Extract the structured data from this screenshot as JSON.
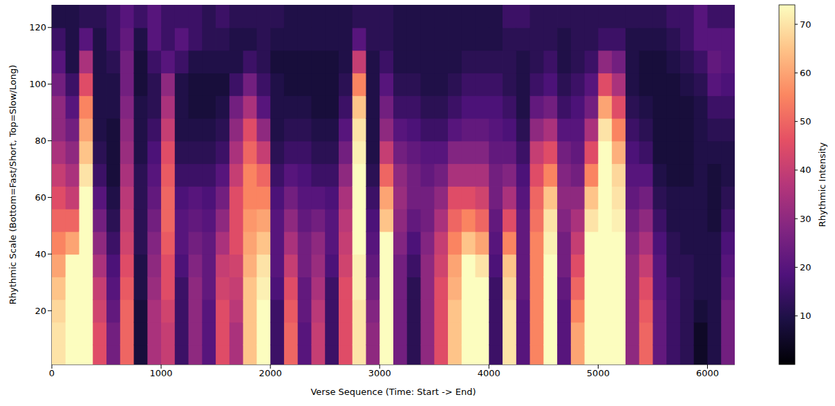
{
  "chart_data": {
    "type": "heatmap",
    "xlabel": "Verse Sequence (Time: Start -> End)",
    "ylabel": "Rhythmic Scale (Bottom=Fast/Short, Top=Slow/Long)",
    "color": "magma",
    "xlim": [
      0,
      6250
    ],
    "xticks": [
      0,
      1000,
      2000,
      3000,
      4000,
      5000,
      6000
    ],
    "ylim": [
      1,
      128
    ],
    "yticks": [
      20,
      40,
      60,
      80,
      100,
      120
    ],
    "grid": false,
    "x": [
      62.5,
      187.5,
      312.5,
      437.5,
      562.5,
      687.5,
      812.5,
      937.5,
      1062.5,
      1187.5,
      1312.5,
      1437.5,
      1562.5,
      1687.5,
      1812.5,
      1937.5,
      2062.5,
      2187.5,
      2312.5,
      2437.5,
      2562.5,
      2687.5,
      2812.5,
      2937.5,
      3062.5,
      3187.5,
      3312.5,
      3437.5,
      3562.5,
      3687.5,
      3812.5,
      3937.5,
      4062.5,
      4187.5,
      4312.5,
      4437.5,
      4562.5,
      4687.5,
      4812.5,
      4937.5,
      5062.5,
      5187.5,
      5312.5,
      5437.5,
      5562.5,
      5687.5,
      5812.5,
      5937.5,
      6062.5,
      6187.5
    ],
    "y": [
      4,
      12,
      20,
      28,
      36,
      44,
      52,
      60,
      68,
      76,
      84,
      92,
      100,
      108,
      116,
      124
    ],
    "cells": [
      [
        70,
        70,
        68,
        65,
        60,
        55,
        50,
        45,
        40,
        35,
        30,
        30,
        25,
        20,
        15,
        10
      ],
      [
        74,
        74,
        74,
        74,
        74,
        60,
        50,
        40,
        35,
        30,
        25,
        20,
        15,
        10,
        10,
        10
      ],
      [
        74,
        74,
        74,
        74,
        74,
        74,
        74,
        74,
        70,
        65,
        60,
        55,
        45,
        35,
        20,
        12
      ],
      [
        45,
        45,
        42,
        40,
        35,
        30,
        25,
        20,
        15,
        12,
        10,
        10,
        10,
        10,
        10,
        12
      ],
      [
        25,
        25,
        22,
        20,
        18,
        15,
        12,
        10,
        8,
        8,
        8,
        10,
        10,
        12,
        15,
        15
      ],
      [
        50,
        50,
        50,
        48,
        45,
        42,
        40,
        38,
        35,
        32,
        30,
        28,
        25,
        25,
        22,
        20
      ],
      [
        8,
        8,
        8,
        10,
        10,
        12,
        12,
        12,
        12,
        10,
        10,
        10,
        8,
        8,
        10,
        15
      ],
      [
        35,
        35,
        35,
        32,
        30,
        28,
        25,
        22,
        20,
        18,
        15,
        12,
        12,
        15,
        20,
        20
      ],
      [
        40,
        40,
        42,
        45,
        45,
        48,
        50,
        50,
        48,
        45,
        40,
        35,
        30,
        20,
        15,
        15
      ],
      [
        15,
        15,
        15,
        15,
        18,
        20,
        20,
        18,
        15,
        12,
        10,
        10,
        10,
        15,
        20,
        15
      ],
      [
        30,
        30,
        30,
        30,
        28,
        25,
        22,
        20,
        15,
        12,
        10,
        8,
        8,
        10,
        15,
        15
      ],
      [
        20,
        20,
        20,
        22,
        22,
        22,
        20,
        18,
        15,
        12,
        10,
        8,
        8,
        10,
        12,
        12
      ],
      [
        45,
        45,
        45,
        42,
        40,
        35,
        30,
        25,
        20,
        15,
        12,
        10,
        8,
        10,
        12,
        15
      ],
      [
        35,
        35,
        38,
        40,
        42,
        45,
        45,
        45,
        40,
        35,
        30,
        25,
        15,
        10,
        10,
        12
      ],
      [
        65,
        65,
        65,
        65,
        62,
        60,
        58,
        55,
        55,
        50,
        45,
        35,
        25,
        15,
        10,
        12
      ],
      [
        74,
        74,
        74,
        72,
        70,
        65,
        60,
        55,
        50,
        40,
        30,
        20,
        15,
        12,
        12,
        12
      ],
      [
        15,
        15,
        15,
        18,
        20,
        20,
        20,
        18,
        15,
        12,
        10,
        10,
        10,
        8,
        10,
        12
      ],
      [
        50,
        50,
        48,
        45,
        40,
        35,
        30,
        25,
        20,
        15,
        12,
        10,
        8,
        8,
        10,
        10
      ],
      [
        20,
        20,
        22,
        22,
        25,
        25,
        22,
        20,
        18,
        15,
        12,
        10,
        8,
        8,
        10,
        10
      ],
      [
        40,
        40,
        38,
        35,
        32,
        30,
        25,
        20,
        15,
        12,
        10,
        8,
        8,
        8,
        10,
        10
      ],
      [
        15,
        15,
        15,
        15,
        18,
        20,
        20,
        18,
        15,
        12,
        10,
        8,
        8,
        8,
        10,
        10
      ],
      [
        45,
        45,
        45,
        45,
        42,
        40,
        38,
        35,
        30,
        25,
        20,
        15,
        12,
        10,
        10,
        10
      ],
      [
        70,
        70,
        70,
        72,
        72,
        74,
        74,
        74,
        74,
        72,
        70,
        65,
        55,
        40,
        20,
        12
      ],
      [
        30,
        30,
        28,
        25,
        22,
        20,
        18,
        15,
        12,
        10,
        10,
        10,
        10,
        10,
        12,
        12
      ],
      [
        74,
        74,
        74,
        74,
        74,
        74,
        65,
        60,
        50,
        40,
        30,
        25,
        20,
        15,
        12,
        12
      ],
      [
        25,
        25,
        25,
        25,
        25,
        28,
        30,
        32,
        30,
        25,
        20,
        15,
        12,
        10,
        10,
        10
      ],
      [
        12,
        12,
        12,
        12,
        15,
        18,
        22,
        25,
        25,
        22,
        18,
        15,
        12,
        10,
        10,
        10
      ],
      [
        30,
        30,
        30,
        30,
        30,
        28,
        25,
        25,
        22,
        20,
        15,
        12,
        10,
        10,
        10,
        10
      ],
      [
        45,
        45,
        45,
        45,
        42,
        40,
        35,
        30,
        25,
        20,
        15,
        12,
        10,
        10,
        10,
        10
      ],
      [
        65,
        65,
        65,
        62,
        60,
        55,
        50,
        45,
        35,
        28,
        20,
        15,
        12,
        10,
        10,
        10
      ],
      [
        74,
        74,
        74,
        74,
        74,
        65,
        55,
        45,
        35,
        28,
        22,
        18,
        15,
        12,
        10,
        10
      ],
      [
        74,
        74,
        74,
        74,
        70,
        60,
        50,
        42,
        35,
        28,
        22,
        18,
        15,
        12,
        10,
        10
      ],
      [
        15,
        15,
        15,
        15,
        18,
        20,
        22,
        25,
        25,
        22,
        20,
        18,
        15,
        12,
        10,
        10
      ],
      [
        70,
        70,
        70,
        68,
        65,
        55,
        45,
        35,
        28,
        22,
        18,
        15,
        12,
        12,
        12,
        15
      ],
      [
        20,
        20,
        20,
        22,
        22,
        22,
        22,
        20,
        18,
        15,
        12,
        10,
        10,
        10,
        12,
        15
      ],
      [
        55,
        55,
        55,
        55,
        55,
        55,
        52,
        50,
        45,
        40,
        30,
        22,
        15,
        12,
        12,
        12
      ],
      [
        74,
        74,
        74,
        74,
        74,
        72,
        70,
        65,
        55,
        45,
        35,
        25,
        18,
        15,
        12,
        12
      ],
      [
        20,
        20,
        20,
        22,
        25,
        25,
        28,
        30,
        28,
        25,
        20,
        15,
        12,
        10,
        10,
        12
      ],
      [
        60,
        60,
        55,
        50,
        45,
        40,
        35,
        30,
        25,
        22,
        20,
        18,
        15,
        12,
        12,
        12
      ],
      [
        74,
        74,
        74,
        74,
        74,
        74,
        70,
        65,
        55,
        45,
        35,
        25,
        20,
        15,
        12,
        12
      ],
      [
        74,
        74,
        74,
        74,
        74,
        74,
        74,
        74,
        74,
        74,
        70,
        60,
        45,
        30,
        15,
        12
      ],
      [
        74,
        74,
        74,
        74,
        74,
        74,
        72,
        70,
        68,
        62,
        55,
        45,
        35,
        25,
        15,
        12
      ],
      [
        30,
        30,
        30,
        30,
        30,
        28,
        25,
        22,
        20,
        18,
        15,
        12,
        10,
        10,
        10,
        12
      ],
      [
        50,
        50,
        48,
        45,
        40,
        35,
        30,
        25,
        20,
        15,
        12,
        10,
        8,
        8,
        10,
        12
      ],
      [
        22,
        22,
        22,
        20,
        20,
        18,
        15,
        12,
        10,
        8,
        8,
        8,
        8,
        8,
        10,
        12
      ],
      [
        15,
        15,
        15,
        15,
        12,
        12,
        10,
        10,
        8,
        8,
        8,
        8,
        8,
        10,
        12,
        15
      ],
      [
        12,
        12,
        12,
        12,
        12,
        10,
        10,
        10,
        8,
        8,
        8,
        8,
        10,
        12,
        15,
        15
      ],
      [
        5,
        5,
        8,
        10,
        10,
        10,
        10,
        10,
        10,
        10,
        10,
        10,
        12,
        15,
        20,
        20
      ],
      [
        10,
        10,
        10,
        10,
        10,
        10,
        8,
        8,
        8,
        10,
        12,
        15,
        20,
        22,
        20,
        15
      ],
      [
        25,
        25,
        25,
        22,
        20,
        18,
        15,
        12,
        10,
        10,
        12,
        15,
        18,
        20,
        20,
        15
      ]
    ],
    "colorbar": {
      "range": [
        0,
        74
      ],
      "ticks": [
        10,
        20,
        30,
        40,
        50,
        60,
        70
      ],
      "label": "Rhythmic Intensity"
    }
  }
}
